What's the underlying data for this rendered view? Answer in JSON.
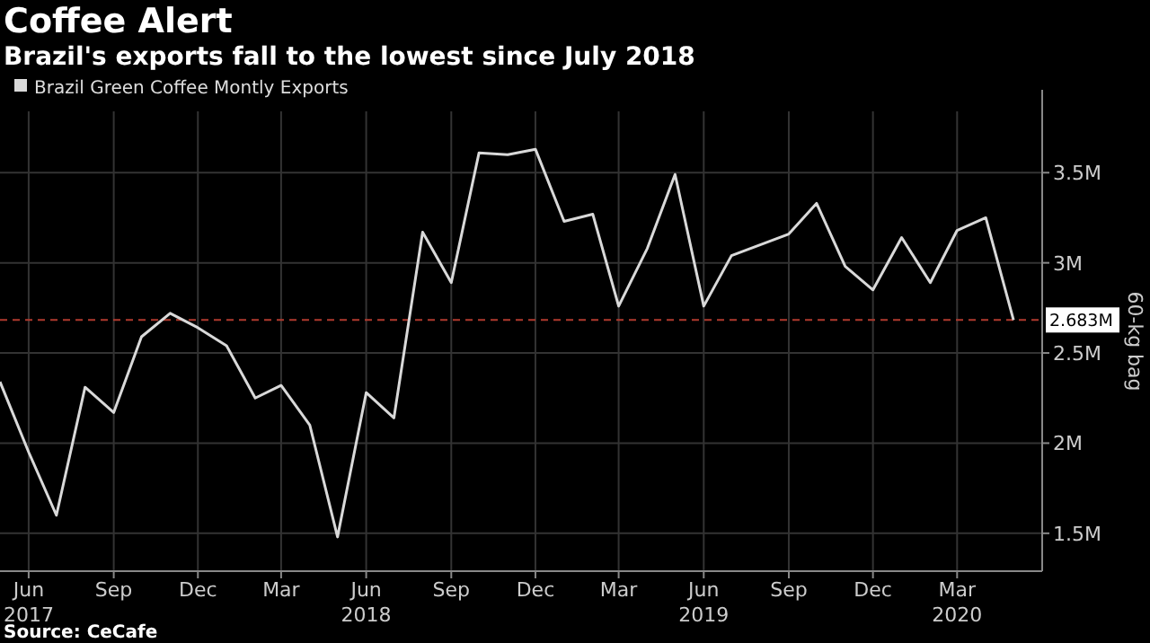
{
  "chart_data": {
    "type": "line",
    "title": "Coffee Alert",
    "subtitle": "Brazil's exports fall to the lowest since July 2018",
    "ylabel": "60-kg bag",
    "x": [
      "2017-05",
      "2017-06",
      "2017-07",
      "2017-08",
      "2017-09",
      "2017-10",
      "2017-11",
      "2017-12",
      "2018-01",
      "2018-02",
      "2018-03",
      "2018-04",
      "2018-05",
      "2018-06",
      "2018-07",
      "2018-08",
      "2018-09",
      "2018-10",
      "2018-11",
      "2018-12",
      "2019-01",
      "2019-02",
      "2019-03",
      "2019-04",
      "2019-05",
      "2019-06",
      "2019-07",
      "2019-08",
      "2019-09",
      "2019-10",
      "2019-11",
      "2019-12",
      "2020-01",
      "2020-02",
      "2020-03",
      "2020-04",
      "2020-05"
    ],
    "series": [
      {
        "name": "Brazil Green Coffee Montly Exports",
        "color": "#d9d9d9",
        "values": [
          2.34,
          1.95,
          1.6,
          2.31,
          2.17,
          2.59,
          2.72,
          2.64,
          2.54,
          2.25,
          2.32,
          2.1,
          1.48,
          2.28,
          2.14,
          3.17,
          2.89,
          3.61,
          3.6,
          3.63,
          3.23,
          3.27,
          2.76,
          3.08,
          3.49,
          2.76,
          3.04,
          3.1,
          3.16,
          3.33,
          2.98,
          2.85,
          3.14,
          2.89,
          3.18,
          3.25,
          2.683
        ]
      }
    ],
    "xlim": [
      "2017-05",
      "2020-06"
    ],
    "xticks": [
      {
        "value": "2017-06",
        "label": "Jun\n2017"
      },
      {
        "value": "2017-09",
        "label": "Sep"
      },
      {
        "value": "2017-12",
        "label": "Dec"
      },
      {
        "value": "2018-03",
        "label": "Mar"
      },
      {
        "value": "2018-06",
        "label": "Jun\n2018"
      },
      {
        "value": "2018-09",
        "label": "Sep"
      },
      {
        "value": "2018-12",
        "label": "Dec"
      },
      {
        "value": "2019-03",
        "label": "Mar"
      },
      {
        "value": "2019-06",
        "label": "Jun\n2019"
      },
      {
        "value": "2019-09",
        "label": "Sep"
      },
      {
        "value": "2019-12",
        "label": "Dec"
      },
      {
        "value": "2020-03",
        "label": "Mar\n2020"
      }
    ],
    "ylim": [
      1.29,
      3.84
    ],
    "yticks": [
      {
        "value": 1.5,
        "label": "1.5M"
      },
      {
        "value": 2,
        "label": "2M"
      },
      {
        "value": 2.5,
        "label": "2.5M"
      },
      {
        "value": 3,
        "label": "3M"
      },
      {
        "value": 3.5,
        "label": "3.5M"
      }
    ],
    "ref_lines": [
      {
        "axis": "y",
        "value": 2.683,
        "label": "2.683M",
        "color": "#b03a2e",
        "line_style": "dashed"
      }
    ],
    "grid": true,
    "legend": "top left",
    "annotations": [
      "Source: CeCafe"
    ]
  }
}
